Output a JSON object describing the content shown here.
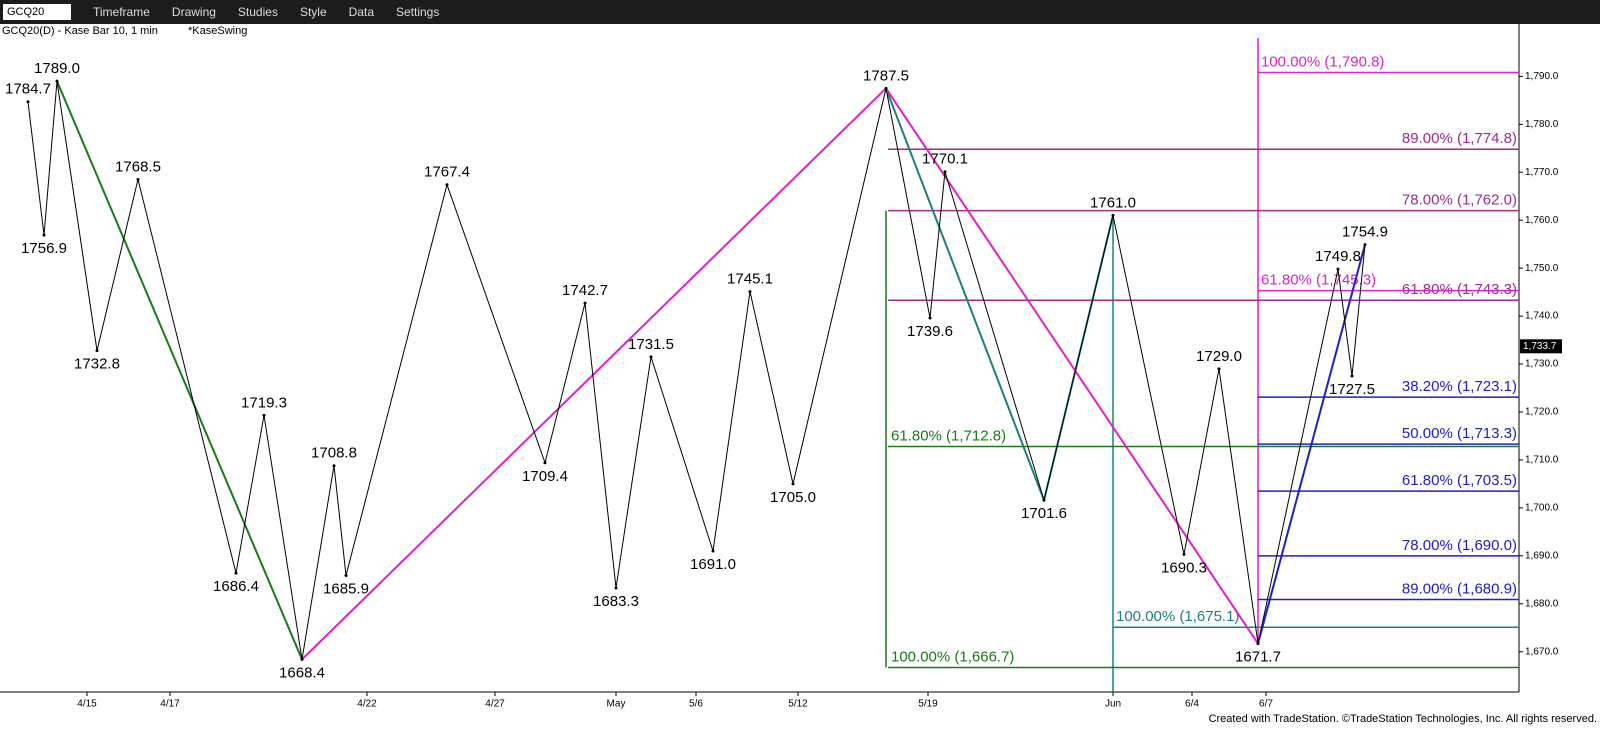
{
  "toolbar": {
    "symbol": "GCQ20",
    "menus": [
      "Timeframe",
      "Drawing",
      "Studies",
      "Style",
      "Data",
      "Settings"
    ]
  },
  "footer": "Created with TradeStation. ©TradeStation Technologies, Inc. All rights reserved.",
  "chart_data": {
    "type": "swing",
    "title": "GCQ20(D) - Kase Bar 10, 1 min",
    "subtitle": "*KaseSwing",
    "xlim": [
      0,
      1519
    ],
    "ylim": [
      1661.6,
      1798
    ],
    "xticks": [
      {
        "value": 87,
        "label": "4/15"
      },
      {
        "value": 170,
        "label": "4/17"
      },
      {
        "value": 367,
        "label": "4/22"
      },
      {
        "value": 495,
        "label": "4/27"
      },
      {
        "value": 616,
        "label": "May"
      },
      {
        "value": 696,
        "label": "5/6"
      },
      {
        "value": 798,
        "label": "5/12"
      },
      {
        "value": 928,
        "label": "5/19"
      },
      {
        "value": 1113,
        "label": "Jun"
      },
      {
        "value": 1192,
        "label": "6/4"
      },
      {
        "value": 1266,
        "label": "6/7"
      }
    ],
    "yticks": [
      {
        "value": 1670,
        "label": "1,670.0"
      },
      {
        "value": 1680,
        "label": "1,680.0"
      },
      {
        "value": 1690,
        "label": "1,690.0"
      },
      {
        "value": 1700,
        "label": "1,700.0"
      },
      {
        "value": 1710,
        "label": "1,710.0"
      },
      {
        "value": 1720,
        "label": "1,720.0"
      },
      {
        "value": 1730,
        "label": "1,730.0"
      },
      {
        "value": 1740,
        "label": "1,740.0"
      },
      {
        "value": 1750,
        "label": "1,750.0"
      },
      {
        "value": 1760,
        "label": "1,760.0"
      },
      {
        "value": 1770,
        "label": "1,770.0"
      },
      {
        "value": 1780,
        "label": "1,780.0"
      },
      {
        "value": 1790,
        "label": "1,790.0"
      }
    ],
    "color": "#000000",
    "x": [
      28,
      44,
      57,
      97,
      138,
      236,
      264,
      302,
      334,
      346,
      447,
      545,
      585,
      616,
      651,
      713,
      750,
      793,
      886,
      930,
      945,
      1044,
      1113,
      1184,
      1219,
      1258,
      1338,
      1352,
      1365
    ],
    "values": [
      1784.7,
      1756.9,
      1789.0,
      1732.8,
      1768.5,
      1686.4,
      1719.3,
      1668.4,
      1708.8,
      1685.9,
      1767.4,
      1709.4,
      1742.7,
      1683.3,
      1731.5,
      1691.0,
      1745.1,
      1705.0,
      1787.5,
      1739.6,
      1770.1,
      1701.6,
      1761.0,
      1690.3,
      1729.0,
      1671.7,
      1749.8,
      1727.5,
      1754.9
    ],
    "value_labels": [
      "1784.7",
      "1756.9",
      "1789.0",
      "1732.8",
      "1768.5",
      "1686.4",
      "1719.3",
      "1668.4",
      "1708.8",
      "1685.9",
      "1767.4",
      "1709.4",
      "1742.7",
      "1683.3",
      "1731.5",
      "1691.0",
      "1745.1",
      "1705.0",
      "1787.5",
      "1739.6",
      "1770.1",
      "1701.6",
      "1761.0",
      "1690.3",
      "1729.0",
      "1671.7",
      "1749.8",
      "1727.5",
      "1754.9"
    ],
    "last_price": {
      "value": 1733.7,
      "label": "1,733.7"
    },
    "fib_levels": [
      {
        "value": 1790.8,
        "label": "100.00% (1,790.8)",
        "color": "#e020c8",
        "x_start": 1258,
        "label_side": "left"
      },
      {
        "value": 1774.8,
        "label": "89.00% (1,774.8)",
        "color": "#9b2d8f",
        "x_start": 888,
        "label_side": "right"
      },
      {
        "value": 1762.0,
        "label": "78.00% (1,762.0)",
        "color": "#9b2d8f",
        "x_start": 888,
        "label_side": "right"
      },
      {
        "value": 1743.3,
        "label": "61.80% (1,743.3)",
        "color": "#9b2d8f",
        "x_start": 888,
        "label_side": "right"
      },
      {
        "value": 1745.3,
        "label": "61.80% (1,745.3)",
        "color": "#e020c8",
        "x_start": 1258,
        "label_side": "left"
      },
      {
        "value": 1712.8,
        "label": "61.80% (1,712.8)",
        "color": "#1a7a1a",
        "x_start": 888,
        "label_side": "left"
      },
      {
        "value": 1666.7,
        "label": "100.00% (1,666.7)",
        "color": "#1a7a1a",
        "x_start": 888,
        "label_side": "left"
      },
      {
        "value": 1675.1,
        "label": "100.00% (1,675.1)",
        "color": "#1a8080",
        "x_start": 1113,
        "label_side": "left"
      },
      {
        "value": 1723.1,
        "label": "38.20% (1,723.1)",
        "color": "#2020c0",
        "x_start": 1258,
        "label_side": "right"
      },
      {
        "value": 1713.3,
        "label": "50.00% (1,713.3)",
        "color": "#2020c0",
        "x_start": 1258,
        "label_side": "right"
      },
      {
        "value": 1703.5,
        "label": "61.80% (1,703.5)",
        "color": "#2020c0",
        "x_start": 1258,
        "label_side": "right"
      },
      {
        "value": 1690.0,
        "label": "78.00% (1,690.0)",
        "color": "#2020c0",
        "x_start": 1258,
        "label_side": "right"
      },
      {
        "value": 1680.9,
        "label": "89.00% (1,680.9)",
        "color": "#2020c0",
        "x_start": 1258,
        "label_side": "right"
      }
    ]
  }
}
